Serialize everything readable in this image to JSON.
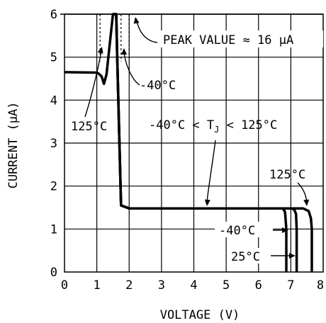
{
  "chart_data": {
    "type": "line",
    "xlabel": "VOLTAGE (V)",
    "ylabel": "CURRENT (µA)",
    "xlim": [
      0,
      8
    ],
    "ylim": [
      0,
      6
    ],
    "x_ticks": [
      "0",
      "1",
      "2",
      "3",
      "4",
      "5",
      "6",
      "7",
      "8"
    ],
    "y_ticks": [
      "0",
      "1",
      "2",
      "3",
      "4",
      "5",
      "6"
    ],
    "grid": true,
    "series": [
      {
        "name": "125°C",
        "x": [
          0.0,
          1.0,
          1.05,
          1.15,
          1.2,
          1.22,
          1.3,
          1.5,
          1.6,
          1.63,
          1.75,
          2.0,
          4.0,
          6.0,
          7.0,
          7.38,
          7.55,
          7.62,
          7.65,
          7.65
        ],
        "y": [
          4.65,
          4.64,
          4.62,
          4.55,
          4.42,
          4.38,
          4.6,
          6.0,
          6.0,
          5.0,
          1.55,
          1.48,
          1.48,
          1.48,
          1.48,
          1.48,
          1.42,
          1.25,
          1.0,
          0.0
        ]
      },
      {
        "name": "-40°C",
        "x": [
          1.5,
          1.55,
          1.6,
          1.63,
          1.75,
          2.0,
          4.0,
          6.0,
          6.75,
          6.82,
          6.86,
          6.86
        ],
        "y": [
          6.0,
          6.0,
          6.0,
          5.0,
          1.55,
          1.48,
          1.48,
          1.48,
          1.48,
          1.4,
          1.0,
          0.0
        ]
      },
      {
        "name": "25°C",
        "x": [
          1.6,
          1.63,
          1.75,
          2.0,
          4.0,
          6.0,
          7.0,
          7.1,
          7.16,
          7.18,
          7.18
        ],
        "y": [
          6.0,
          5.0,
          1.55,
          1.48,
          1.48,
          1.48,
          1.48,
          1.46,
          1.35,
          1.0,
          0.0
        ]
      }
    ],
    "peak_markers_x": [
      1.1,
      1.75,
      2.0
    ],
    "annotations": [
      {
        "text": "PEAK VALUE ≈ 16 µA"
      },
      {
        "text": "-40°C"
      },
      {
        "text": "125°C"
      },
      {
        "text": "-40°C < T",
        "sub": "J",
        "tail": " < 125°C"
      },
      {
        "text": "125°C"
      },
      {
        "text": "-40°C"
      },
      {
        "text": "25°C"
      }
    ]
  }
}
